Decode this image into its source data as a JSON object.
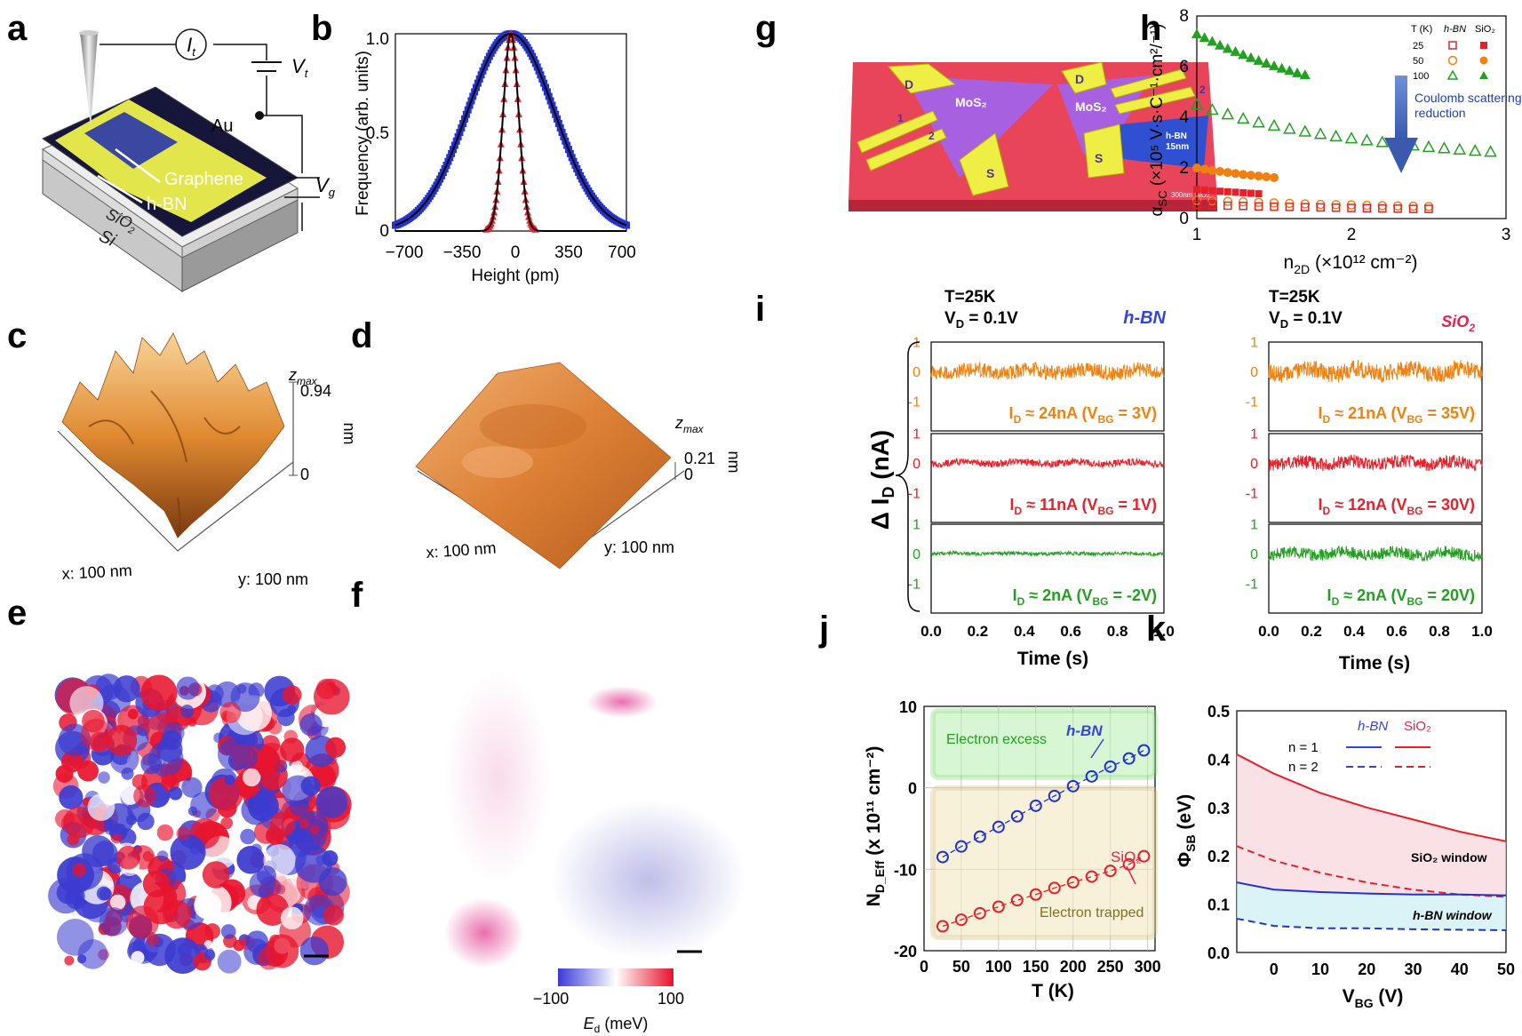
{
  "panel_labels": [
    "a",
    "b",
    "c",
    "d",
    "e",
    "f",
    "g",
    "h",
    "i",
    "j",
    "k"
  ],
  "a": {
    "it": "I",
    "it_sub": "t",
    "vt": "V",
    "vt_sub": "t",
    "vg": "V",
    "vg_sub": "g",
    "au": "Au",
    "graphene": "Graphene",
    "hbn": "h-BN",
    "sio2": "SiO",
    "sio2_sub": "2",
    "si": "Si"
  },
  "b": {
    "ylabel": "Frequency (arb. units)",
    "xlabel": "Height (pm)",
    "xticks": [
      "−700",
      "−350",
      "0",
      "350",
      "700"
    ],
    "yticks": [
      "0",
      "0.5",
      "1.0"
    ]
  },
  "c": {
    "zmax_label": "z",
    "zmax_sub": "max",
    "zmax_val": "0.94",
    "zero": "0",
    "x_axis": "x: 100 nm",
    "y_axis": "y: 100 nm"
  },
  "d": {
    "zmax_label": "z",
    "zmax_sub": "max",
    "zmax_val": "0.21",
    "zero": "0",
    "unit": "nm",
    "x_axis": "x: 100 nm",
    "y_axis": "y: 100 nm"
  },
  "c_unit": "nm",
  "f": {
    "cb_min": "−100",
    "cb_max": "100",
    "cb_label": "E",
    "cb_sub": "d",
    "cb_unit": " (meV)"
  },
  "g": {
    "d1": "D",
    "d2": "D",
    "s1": "S",
    "s2": "S",
    "mos2a": "MoS₂",
    "mos2b": "MoS₂",
    "n1a": "1",
    "n2a": "2",
    "n1b": "1",
    "n2b": "2",
    "hbn": "h-BN",
    "hbn_thick": "15nm",
    "sio2": "300nm SiO2"
  },
  "h": {
    "xlabel": "n",
    "xlabel_sub": "2D",
    "xlabel_rest": " (×10¹² cm⁻²)",
    "ylabel": "α",
    "ylabel_sub": "SC",
    "ylabel_rest": " (×10⁵ V·s·C⁻¹·cm²/⁻¹)",
    "xticks": [
      "1",
      "2",
      "3"
    ],
    "yticks": [
      "0",
      "2",
      "4",
      "6",
      "8"
    ],
    "legend_head": "T (K)",
    "legend_hbn": "h-BN",
    "legend_sio2": "SiO₂",
    "legend_t": [
      "25",
      "50",
      "100"
    ],
    "arrow_text1": "Coulomb scattering",
    "arrow_text2": "reduction"
  },
  "i": {
    "cond1": "T=25K",
    "vd1": "V",
    "vd1_sub": "D",
    "vd1_rest": " = 0.1V",
    "mat1": "h-BN",
    "mat2": "SiO",
    "mat2_sub": "2",
    "ylabel": "Δ I",
    "ylabel_sub": "D",
    "ylabel_rest": " (nA)",
    "xlabel": "Time (s)",
    "xticks": [
      "0.0",
      "0.2",
      "0.4",
      "0.6",
      "0.8",
      "1.0"
    ],
    "yticks": [
      "1",
      "0",
      "-1"
    ],
    "left_labels": [
      "I ≈ 24nA (V = 3V)",
      "I ≈ 11nA (V = 1V)",
      "I ≈ 2nA (V = -2V)"
    ],
    "right_labels": [
      "I ≈ 21nA (V = 35V)",
      "I ≈ 12nA (V = 30V)",
      "I ≈ 2nA (V = 20V)"
    ]
  },
  "j": {
    "ylabel": "N",
    "ylabel_sub": "D_Eff",
    "ylabel_rest": " (x 10¹¹ cm⁻²)",
    "xlabel": "T (K)",
    "xticks": [
      "0",
      "50",
      "100",
      "150",
      "200",
      "250",
      "300"
    ],
    "yticks": [
      "10",
      "0",
      "-10",
      "-20"
    ],
    "excess": "Electron excess",
    "trapped": "Electron trapped",
    "hbn": "h-BN",
    "sio2": "SiO₂"
  },
  "k": {
    "ylabel": "Φ",
    "ylabel_sub": "SB",
    "ylabel_rest": " (eV)",
    "xlabel": "V",
    "xlabel_sub": "BG",
    "xlabel_rest": " (V)",
    "xticks": [
      "0",
      "10",
      "20",
      "30",
      "40",
      "50"
    ],
    "yticks": [
      "0.0",
      "0.1",
      "0.2",
      "0.3",
      "0.4",
      "0.5"
    ],
    "hbn": "h-BN",
    "sio2": "SiO₂",
    "n1": "n = 1",
    "n2": "n = 2",
    "sio2_window": "SiO₂ window",
    "hbn_window": "h-BN window"
  },
  "colors": {
    "blue": "#2233cc",
    "red": "#e8202a",
    "green": "#22a020",
    "orange": "#f08010",
    "hbn_text": "#3344dd",
    "sio2_text": "#e8204a"
  },
  "chart_data": [
    {
      "panel": "b",
      "type": "histogram",
      "xlabel": "Height (pm)",
      "ylabel": "Frequency (arb. units)",
      "xlim": [
        -700,
        700
      ],
      "ylim": [
        0,
        1.0
      ],
      "series": [
        {
          "name": "wide (blue, SiO2)",
          "fwhm_pm": 620,
          "peak": 1.0
        },
        {
          "name": "narrow (red, h-BN)",
          "fwhm_pm": 110,
          "peak": 1.0
        }
      ]
    },
    {
      "panel": "h",
      "type": "scatter",
      "xlabel": "n2D (×10^12 cm^-2)",
      "ylabel": "αSC (×10^5 V·s·C^-1·cm^2)",
      "xlim": [
        1,
        3
      ],
      "ylim": [
        0,
        8
      ],
      "series": [
        {
          "name": "100 K SiO2",
          "x": [
            1.0,
            1.05,
            1.1,
            1.15,
            1.2,
            1.25,
            1.3,
            1.35,
            1.4,
            1.45,
            1.5,
            1.55,
            1.6,
            1.65,
            1.7
          ],
          "y": [
            7.3,
            7.15,
            7.0,
            6.85,
            6.72,
            6.6,
            6.48,
            6.36,
            6.25,
            6.14,
            6.04,
            5.94,
            5.85,
            5.76,
            5.68
          ]
        },
        {
          "name": "100 K h-BN",
          "x": [
            1.0,
            1.1,
            1.2,
            1.3,
            1.4,
            1.5,
            1.6,
            1.7,
            1.8,
            1.9,
            2.0,
            2.1,
            2.2,
            2.3,
            2.4,
            2.5,
            2.6,
            2.7,
            2.8,
            2.9
          ],
          "y": [
            4.5,
            4.3,
            4.12,
            3.95,
            3.8,
            3.67,
            3.55,
            3.44,
            3.34,
            3.25,
            3.17,
            3.09,
            3.02,
            2.95,
            2.89,
            2.83,
            2.78,
            2.73,
            2.68,
            2.64
          ]
        },
        {
          "name": "50 K SiO2",
          "x": [
            1.0,
            1.05,
            1.1,
            1.15,
            1.2,
            1.25,
            1.3,
            1.35,
            1.4,
            1.45,
            1.5
          ],
          "y": [
            2.0,
            1.95,
            1.9,
            1.86,
            1.82,
            1.78,
            1.74,
            1.71,
            1.68,
            1.65,
            1.62
          ]
        },
        {
          "name": "25 K SiO2",
          "x": [
            1.0,
            1.05,
            1.1,
            1.15,
            1.2,
            1.25,
            1.3,
            1.35,
            1.4
          ],
          "y": [
            1.15,
            1.12,
            1.1,
            1.08,
            1.06,
            1.04,
            1.02,
            1.0,
            0.98
          ]
        },
        {
          "name": "50 K h-BN",
          "x": [
            1.0,
            1.1,
            1.2,
            1.3,
            1.4,
            1.5,
            1.6,
            1.7,
            1.8,
            1.9,
            2.0,
            2.1,
            2.2,
            2.3,
            2.4,
            2.5
          ],
          "y": [
            0.72,
            0.7,
            0.68,
            0.66,
            0.64,
            0.62,
            0.6,
            0.58,
            0.56,
            0.55,
            0.54,
            0.52,
            0.51,
            0.5,
            0.49,
            0.48
          ]
        },
        {
          "name": "25 K h-BN",
          "x": [
            1.0,
            1.1,
            1.2,
            1.3,
            1.4,
            1.5,
            1.6,
            1.7,
            1.8,
            1.9,
            2.0,
            2.1,
            2.2,
            2.3,
            2.4,
            2.5
          ],
          "y": [
            0.55,
            0.53,
            0.51,
            0.5,
            0.48,
            0.47,
            0.46,
            0.45,
            0.44,
            0.43,
            0.42,
            0.41,
            0.4,
            0.39,
            0.38,
            0.38
          ]
        }
      ]
    },
    {
      "panel": "i",
      "type": "line",
      "xlabel": "Time (s)",
      "ylabel": "Δ ID (nA)",
      "xlim": [
        0,
        1.0
      ],
      "ylim": [
        -1.5,
        1.5
      ],
      "series": [
        {
          "name": "h-BN ID≈24nA VBG=3V",
          "amplitude": 0.25
        },
        {
          "name": "h-BN ID≈11nA VBG=1V",
          "amplitude": 0.12
        },
        {
          "name": "h-BN ID≈2nA VBG=-2V",
          "amplitude": 0.06
        },
        {
          "name": "SiO2 ID≈21nA VBG=35V",
          "amplitude": 0.3
        },
        {
          "name": "SiO2 ID≈12nA VBG=30V",
          "amplitude": 0.22
        },
        {
          "name": "SiO2 ID≈2nA VBG=20V",
          "amplitude": 0.2
        }
      ]
    },
    {
      "panel": "j",
      "type": "scatter",
      "xlabel": "T (K)",
      "ylabel": "N_D_Eff (x 10^11 cm^-2)",
      "xlim": [
        0,
        310
      ],
      "ylim": [
        -20,
        10
      ],
      "series": [
        {
          "name": "h-BN",
          "x": [
            25,
            50,
            75,
            100,
            125,
            150,
            175,
            200,
            225,
            250,
            275,
            295
          ],
          "y": [
            -8.5,
            -7.2,
            -6.0,
            -4.8,
            -3.5,
            -2.2,
            -1.0,
            0.2,
            1.4,
            2.6,
            3.6,
            4.6
          ]
        },
        {
          "name": "SiO2",
          "x": [
            25,
            50,
            75,
            100,
            125,
            150,
            175,
            200,
            225,
            250,
            275,
            295
          ],
          "y": [
            -17.0,
            -16.2,
            -15.4,
            -14.6,
            -13.8,
            -13.1,
            -12.3,
            -11.6,
            -10.9,
            -10.2,
            -9.4,
            -8.4
          ]
        }
      ]
    },
    {
      "panel": "k",
      "type": "line",
      "xlabel": "VBG (V)",
      "ylabel": "ΦSB (eV)",
      "xlim": [
        -8,
        50
      ],
      "ylim": [
        0,
        0.5
      ],
      "series": [
        {
          "name": "SiO2 n=1",
          "x": [
            -8,
            0,
            10,
            20,
            30,
            40,
            50
          ],
          "y": [
            0.41,
            0.37,
            0.33,
            0.3,
            0.275,
            0.25,
            0.23
          ]
        },
        {
          "name": "SiO2 n=2",
          "x": [
            -8,
            0,
            10,
            20,
            30,
            40,
            50
          ],
          "y": [
            0.22,
            0.19,
            0.165,
            0.145,
            0.13,
            0.12,
            0.115
          ]
        },
        {
          "name": "h-BN n=1",
          "x": [
            -8,
            0,
            10,
            20,
            30,
            40,
            50
          ],
          "y": [
            0.145,
            0.13,
            0.125,
            0.122,
            0.12,
            0.12,
            0.118
          ]
        },
        {
          "name": "h-BN n=2",
          "x": [
            -8,
            0,
            10,
            20,
            30,
            40,
            50
          ],
          "y": [
            0.07,
            0.055,
            0.05,
            0.05,
            0.048,
            0.047,
            0.046
          ]
        }
      ]
    }
  ]
}
